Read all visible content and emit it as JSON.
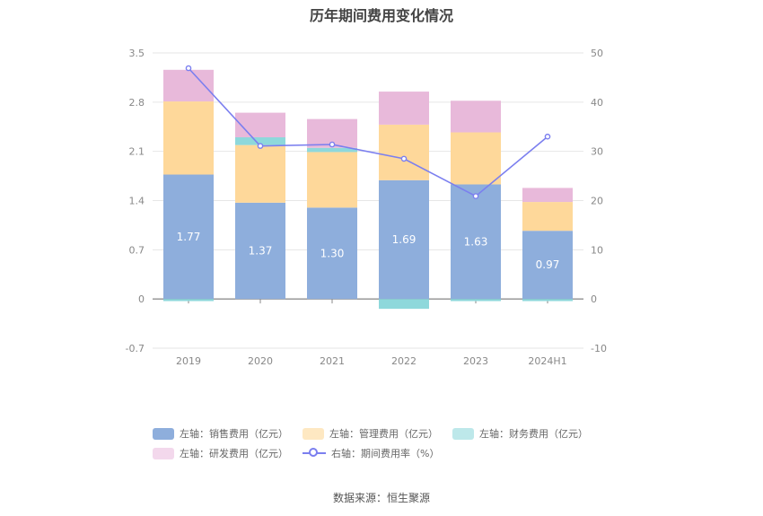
{
  "chart_data": {
    "type": "bar",
    "title": "历年期间费用变化情况",
    "categories": [
      "2019",
      "2020",
      "2021",
      "2022",
      "2023",
      "2024H1"
    ],
    "left_axis": {
      "ticks": [
        "3.5",
        "2.8",
        "2.1",
        "1.4",
        "0.7",
        "0",
        "-0.7"
      ],
      "ylim": [
        -0.7,
        3.5
      ]
    },
    "right_axis": {
      "ticks": [
        "50",
        "40",
        "30",
        "20",
        "10",
        "0",
        "-10"
      ],
      "ylim": [
        -10,
        50
      ]
    },
    "series": [
      {
        "name": "左轴：销售费用（亿元）",
        "kind": "bar",
        "color": "#8eaedc",
        "values": [
          1.77,
          1.37,
          1.3,
          1.69,
          1.63,
          0.97
        ],
        "labels": [
          "1.77",
          "1.37",
          "1.30",
          "1.69",
          "1.63",
          "0.97"
        ]
      },
      {
        "name": "左轴：管理费用（亿元）",
        "kind": "bar",
        "color": "#fed89a",
        "values": [
          1.04,
          0.82,
          0.79,
          0.79,
          0.74,
          0.41
        ]
      },
      {
        "name": "左轴：财务费用（亿元）",
        "kind": "bar",
        "color": "#8ed8db",
        "values": [
          -0.03,
          0.11,
          0.06,
          -0.14,
          -0.03,
          -0.03
        ]
      },
      {
        "name": "左轴：研发费用（亿元）",
        "kind": "bar",
        "color": "#e8b9da",
        "values": [
          0.45,
          0.35,
          0.41,
          0.47,
          0.45,
          0.2
        ]
      },
      {
        "name": "右轴：期间费用率（%）",
        "kind": "line",
        "color": "#7b7fef",
        "values": [
          46.9,
          31.1,
          31.4,
          28.5,
          20.9,
          33.0
        ]
      }
    ],
    "legend_position": "bottom",
    "grid": true
  },
  "source": "数据来源：恒生聚源"
}
